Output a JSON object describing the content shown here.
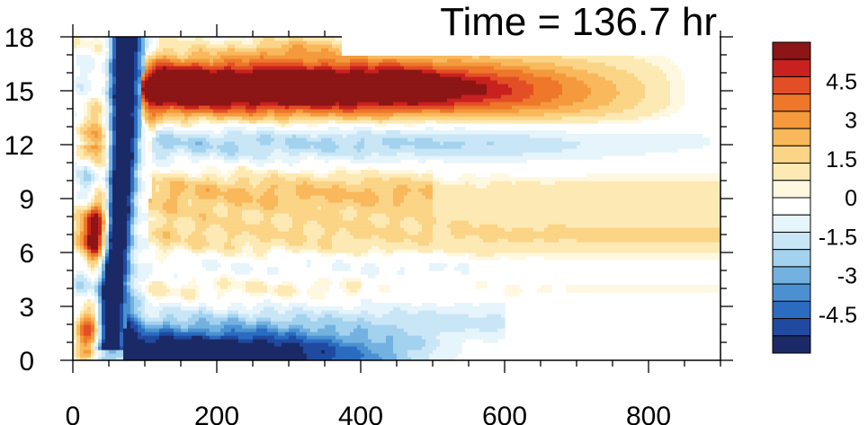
{
  "chart_data": {
    "type": "heatmap",
    "title": "Time = 136.7 hr",
    "xlabel": "",
    "ylabel": "",
    "xlim": [
      0,
      900
    ],
    "ylim": [
      0,
      18
    ],
    "x_ticks": [
      "0",
      "200",
      "400",
      "600",
      "800"
    ],
    "y_ticks": [
      "0",
      "3",
      "6",
      "9",
      "12",
      "15",
      "18"
    ],
    "colorbar": {
      "range": [
        -6,
        6
      ],
      "interval": 0.5,
      "labels": [
        "4.5",
        "3",
        "1.5",
        "0",
        "-1.5",
        "-3",
        "-4.5"
      ],
      "colors": [
        "#1b2a66",
        "#1f4aa0",
        "#2b6cc1",
        "#4b91d2",
        "#73b2e0",
        "#a3d2ee",
        "#c9e6f6",
        "#e6f4fc",
        "#ffffff",
        "#fff8e0",
        "#fde9b3",
        "#fbd486",
        "#f9b85c",
        "#f49a3c",
        "#ee772a",
        "#e34e26",
        "#c8211f",
        "#8c1515"
      ]
    },
    "features": [
      {
        "name": "upper-positive-band",
        "sign": "positive",
        "x_range": [
          85,
          800
        ],
        "y_center": 15.2,
        "peak": 6
      },
      {
        "name": "near-surface-negative-band",
        "sign": "negative",
        "x_range": [
          80,
          420
        ],
        "y_center": 0.5,
        "peak": -6
      },
      {
        "name": "front-negative-column",
        "sign": "negative",
        "x_range": [
          40,
          85
        ],
        "y_range": [
          0,
          18
        ],
        "peak": -6
      },
      {
        "name": "front-positive-column",
        "sign": "positive",
        "x_range": [
          50,
          80
        ],
        "y_range": [
          3,
          13
        ],
        "peak": 5
      },
      {
        "name": "mid-level-negative-band",
        "sign": "negative",
        "x_range": [
          150,
          700
        ],
        "y_center": 12.2,
        "peak": -2
      },
      {
        "name": "mid-level-positive-band",
        "sign": "positive",
        "x_range": [
          120,
          800
        ],
        "y_center": 7.5,
        "peak": 1.5
      }
    ]
  }
}
